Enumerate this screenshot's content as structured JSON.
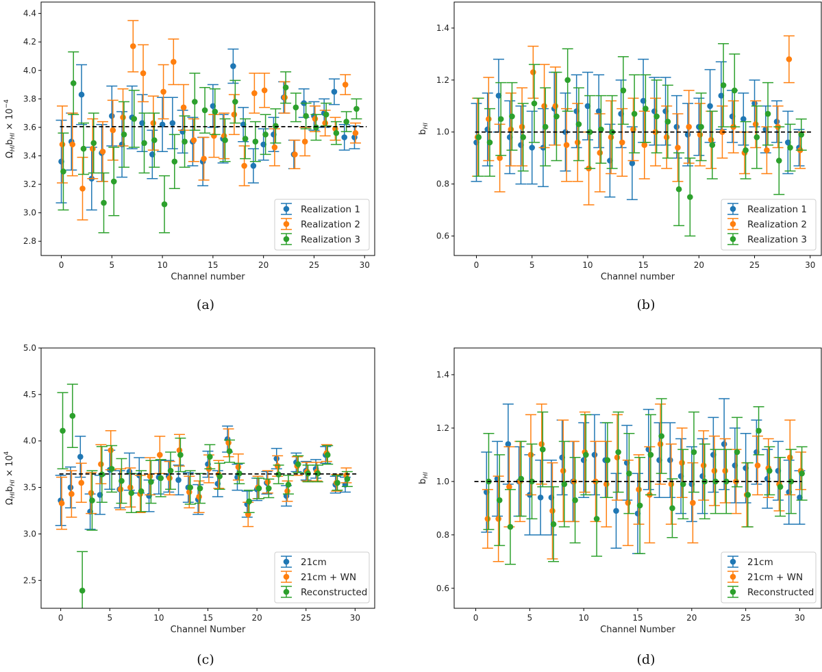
{
  "colors": {
    "series": [
      "#1f77b4",
      "#ff7f0e",
      "#2ca02c"
    ],
    "reference": "#000000"
  },
  "chart_data": [
    {
      "panel": "(a)",
      "type": "scatter",
      "error_bars": true,
      "xlabel": "Channel number",
      "ylabel": "Ω_HI b_HI × 10^-4",
      "ylabel_parts": [
        "Ω",
        "HI",
        "b",
        "HI",
        " × 10",
        "−4"
      ],
      "xlim": [
        -2,
        31
      ],
      "ylim": [
        2.7,
        4.48
      ],
      "xticks": [
        0,
        5,
        10,
        15,
        20,
        25,
        30
      ],
      "yticks": [
        2.8,
        3.0,
        3.2,
        3.4,
        3.6,
        3.8,
        4.0,
        4.2,
        4.4
      ],
      "tick_decimals": 1,
      "reference_line": 3.605,
      "legend_loc": "lower right",
      "series": [
        {
          "name": "Realization 1",
          "offset": 0,
          "errors": [
            0.29,
            0.2,
            0.21,
            0.22,
            0.2,
            0.21,
            0.23,
            0.22,
            0.2,
            0.17,
            0.19,
            0.18,
            0.15,
            0.17,
            0.17,
            0.15,
            0.17,
            0.12,
            0.12,
            0.12,
            0.11,
            0.12,
            0.11,
            0.1,
            0.1,
            0.1,
            0.1,
            0.09,
            0.09,
            0.08
          ],
          "values": [
            3.36,
            3.5,
            3.83,
            3.24,
            3.42,
            3.68,
            3.48,
            3.67,
            3.63,
            3.41,
            3.62,
            3.63,
            3.57,
            3.5,
            3.36,
            3.75,
            3.52,
            4.03,
            3.62,
            3.33,
            3.48,
            3.55,
            3.81,
            3.41,
            3.77,
            3.68,
            3.7,
            3.85,
            3.53,
            3.53
          ]
        },
        {
          "name": "Realization 2",
          "offset": 0.1,
          "errors": [
            0.27,
            0.22,
            0.22,
            0.21,
            0.21,
            0.21,
            0.2,
            0.18,
            0.2,
            0.19,
            0.19,
            0.16,
            0.16,
            0.15,
            0.15,
            0.15,
            0.16,
            0.14,
            0.14,
            0.14,
            0.12,
            0.13,
            0.11,
            0.1,
            0.1,
            0.09,
            0.09,
            0.08,
            0.07,
            0.07
          ],
          "values": [
            3.48,
            3.48,
            3.17,
            3.45,
            3.43,
            3.58,
            3.67,
            4.17,
            3.98,
            3.63,
            3.85,
            4.06,
            3.74,
            3.51,
            3.38,
            3.54,
            3.54,
            3.69,
            3.33,
            3.84,
            3.86,
            3.46,
            3.81,
            3.41,
            3.5,
            3.66,
            3.63,
            3.59,
            3.9,
            3.56
          ]
        },
        {
          "name": "Realization 3",
          "offset": 0.2,
          "errors": [
            0.27,
            0.22,
            0.18,
            0.21,
            0.21,
            0.24,
            0.23,
            0.2,
            0.21,
            0.19,
            0.2,
            0.19,
            0.18,
            0.2,
            0.16,
            0.16,
            0.15,
            0.15,
            0.14,
            0.14,
            0.14,
            0.12,
            0.11,
            0.1,
            0.09,
            0.09,
            0.08,
            0.08,
            0.07,
            0.07
          ],
          "values": [
            3.29,
            3.91,
            3.45,
            3.49,
            3.07,
            3.22,
            3.55,
            3.66,
            3.49,
            3.51,
            3.06,
            3.36,
            3.5,
            3.78,
            3.72,
            3.71,
            3.51,
            3.78,
            3.52,
            3.5,
            3.55,
            3.61,
            3.88,
            3.74,
            3.68,
            3.6,
            3.69,
            3.56,
            3.64,
            3.73
          ]
        }
      ]
    },
    {
      "panel": "(b)",
      "type": "scatter",
      "error_bars": true,
      "xlabel": "Channel number",
      "ylabel": "b_HI",
      "ylabel_parts": [
        "b",
        "HI",
        "",
        "",
        "",
        ""
      ],
      "xlim": [
        -2,
        31
      ],
      "ylim": [
        0.525,
        1.5
      ],
      "xticks": [
        0,
        5,
        10,
        15,
        20,
        25,
        30
      ],
      "yticks": [
        0.6,
        0.8,
        1.0,
        1.2,
        1.4
      ],
      "tick_decimals": 1,
      "reference_line": 1.0,
      "legend_loc": "lower right",
      "series": [
        {
          "name": "Realization 1",
          "offset": 0,
          "errors": [
            0.15,
            0.14,
            0.14,
            0.14,
            0.15,
            0.14,
            0.15,
            0.14,
            0.15,
            0.14,
            0.13,
            0.14,
            0.14,
            0.13,
            0.14,
            0.16,
            0.13,
            0.13,
            0.12,
            0.12,
            0.11,
            0.14,
            0.13,
            0.1,
            0.1,
            0.09,
            0.09,
            0.08,
            0.12,
            0.07
          ],
          "values": [
            0.96,
            1.01,
            1.14,
            0.98,
            0.95,
            0.94,
            0.94,
            1.09,
            1.0,
            1.08,
            1.1,
            1.08,
            0.89,
            1.07,
            0.88,
            1.12,
            1.08,
            1.08,
            1.02,
            0.99,
            1.02,
            1.1,
            1.14,
            1.06,
            1.05,
            1.11,
            1.01,
            1.04,
            0.96,
            0.94
          ]
        },
        {
          "name": "Realization 2",
          "offset": 0.1,
          "errors": [
            0.15,
            0.16,
            0.13,
            0.14,
            0.15,
            0.1,
            0.16,
            0.15,
            0.14,
            0.15,
            0.14,
            0.15,
            0.14,
            0.13,
            0.12,
            0.13,
            0.13,
            0.12,
            0.13,
            0.14,
            0.12,
            0.11,
            0.1,
            0.1,
            0.08,
            0.09,
            0.09,
            0.08,
            0.09,
            0.07
          ],
          "values": [
            0.98,
            1.05,
            0.9,
            1.01,
            1.02,
            1.23,
            1.1,
            1.1,
            0.95,
            0.96,
            0.86,
            0.92,
            0.98,
            0.96,
            1.01,
            0.95,
            1.0,
            0.98,
            0.94,
            1.02,
            0.99,
            0.97,
            1.0,
            1.02,
            0.92,
            1.03,
            0.93,
            1.02,
            1.28,
            0.93
          ]
        },
        {
          "name": "Realization 3",
          "offset": 0.2,
          "errors": [
            0.15,
            0.13,
            0.14,
            0.13,
            0.13,
            0.15,
            0.15,
            0.17,
            0.12,
            0.14,
            0.14,
            0.13,
            0.14,
            0.13,
            0.15,
            0.13,
            0.14,
            0.14,
            0.14,
            0.15,
            0.13,
            0.13,
            0.16,
            0.14,
            0.11,
            0.12,
            0.12,
            0.13,
            0.09,
            0.06
          ],
          "values": [
            0.98,
            0.96,
            1.05,
            1.06,
            0.98,
            1.11,
            1.02,
            1.06,
            1.2,
            1.03,
            1.0,
            1.01,
            1.0,
            1.16,
            1.07,
            1.09,
            1.06,
            1.04,
            0.78,
            0.75,
            1.02,
            0.95,
            1.18,
            1.16,
            0.93,
            0.98,
            1.07,
            0.89,
            0.94,
            0.99
          ]
        }
      ]
    },
    {
      "panel": "(c)",
      "type": "scatter",
      "error_bars": true,
      "xlabel": "Channel Number",
      "ylabel": "Ω_HI b_HI × 10^4",
      "ylabel_parts": [
        "Ω",
        "HI",
        "b",
        "HI",
        " × 10",
        "4"
      ],
      "xlim": [
        -2,
        32
      ],
      "ylim": [
        2.2,
        5.0
      ],
      "xticks": [
        0,
        5,
        10,
        15,
        20,
        25,
        30
      ],
      "yticks": [
        2.5,
        3.0,
        3.5,
        4.0,
        4.5,
        5.0
      ],
      "tick_decimals": 1,
      "reference_line": 3.645,
      "legend_loc": "lower right",
      "series": [
        {
          "name": "21cm",
          "offset": 0,
          "errors": [
            0.27,
            0.22,
            0.22,
            0.19,
            0.21,
            0.21,
            0.2,
            0.2,
            0.19,
            0.17,
            0.18,
            0.17,
            0.16,
            0.16,
            0.16,
            0.14,
            0.14,
            0.14,
            0.14,
            0.14,
            0.12,
            0.12,
            0.11,
            0.11,
            0.1,
            0.1,
            0.1,
            0.09,
            0.09,
            0.08
          ],
          "values": [
            3.36,
            3.5,
            3.83,
            3.24,
            3.42,
            3.69,
            3.48,
            3.67,
            3.63,
            3.41,
            3.61,
            3.62,
            3.58,
            3.5,
            3.37,
            3.75,
            3.54,
            4.02,
            3.61,
            3.32,
            3.48,
            3.55,
            3.81,
            3.41,
            3.77,
            3.68,
            3.7,
            3.85,
            3.53,
            3.53
          ]
        },
        {
          "name": "21cm + WN",
          "offset": 0.1,
          "errors": [
            0.28,
            0.25,
            0.21,
            0.22,
            0.21,
            0.21,
            0.22,
            0.21,
            0.2,
            0.2,
            0.2,
            0.18,
            0.17,
            0.17,
            0.17,
            0.15,
            0.15,
            0.15,
            0.14,
            0.13,
            0.12,
            0.12,
            0.11,
            0.11,
            0.1,
            0.1,
            0.1,
            0.09,
            0.09,
            0.08
          ],
          "values": [
            3.33,
            3.43,
            3.55,
            3.44,
            3.75,
            3.9,
            3.48,
            3.5,
            3.43,
            3.62,
            3.85,
            3.6,
            3.9,
            3.45,
            3.4,
            3.7,
            3.64,
            3.98,
            3.72,
            3.21,
            3.5,
            3.56,
            3.73,
            3.46,
            3.73,
            3.67,
            3.67,
            3.87,
            3.55,
            3.63
          ]
        },
        {
          "name": "Reconstructed",
          "offset": 0.2,
          "errors": [
            0.41,
            0.34,
            0.42,
            0.32,
            0.3,
            0.25,
            0.24,
            0.21,
            0.22,
            0.23,
            0.2,
            0.2,
            0.18,
            0.18,
            0.16,
            0.13,
            0.14,
            0.12,
            0.11,
            0.12,
            0.11,
            0.1,
            0.1,
            0.1,
            0.09,
            0.09,
            0.09,
            0.1,
            0.08,
            0.08
          ],
          "values": [
            4.11,
            4.27,
            2.39,
            3.36,
            3.64,
            3.7,
            3.57,
            3.44,
            3.46,
            3.56,
            3.6,
            3.68,
            3.85,
            3.5,
            3.49,
            3.83,
            3.62,
            3.89,
            3.65,
            3.35,
            3.49,
            3.49,
            3.64,
            3.53,
            3.75,
            3.65,
            3.65,
            3.85,
            3.55,
            3.59
          ]
        }
      ]
    },
    {
      "panel": "(d)",
      "type": "scatter",
      "error_bars": true,
      "xlabel": "Channel Number",
      "ylabel": "b_HI",
      "ylabel_parts": [
        "b",
        "HI",
        "",
        "",
        "",
        ""
      ],
      "xlim": [
        -2,
        32
      ],
      "ylim": [
        0.525,
        1.5
      ],
      "xticks": [
        0,
        5,
        10,
        15,
        20,
        25,
        30
      ],
      "yticks": [
        0.6,
        0.8,
        1.0,
        1.2,
        1.4
      ],
      "tick_decimals": 1,
      "reference_line": 1.0,
      "legend_loc": "lower right",
      "x": [
        1,
        2,
        3,
        4,
        5,
        6,
        7,
        8,
        9,
        10,
        11,
        12,
        13,
        14,
        15,
        16,
        17,
        18,
        19,
        20,
        21,
        22,
        23,
        24,
        25,
        26,
        27,
        28,
        29,
        30
      ],
      "series": [
        {
          "name": "21cm",
          "offset": 0,
          "errors": [
            0.15,
            0.14,
            0.15,
            0.13,
            0.15,
            0.14,
            0.14,
            0.14,
            0.15,
            0.14,
            0.15,
            0.14,
            0.14,
            0.14,
            0.15,
            0.15,
            0.14,
            0.14,
            0.14,
            0.14,
            0.14,
            0.14,
            0.17,
            0.14,
            0.13,
            0.12,
            0.11,
            0.11,
            0.12,
            0.1
          ],
          "values": [
            0.96,
            1.01,
            1.14,
            1.0,
            0.95,
            0.94,
            0.94,
            1.09,
            1.0,
            1.08,
            1.1,
            1.08,
            0.89,
            1.07,
            0.88,
            1.12,
            1.08,
            1.08,
            1.02,
            0.99,
            1.02,
            1.1,
            1.14,
            1.06,
            1.05,
            1.11,
            1.01,
            1.04,
            0.96,
            0.94
          ]
        },
        {
          "name": "21cm + WN",
          "offset": 0.1,
          "errors": [
            0.11,
            0.16,
            0.15,
            0.15,
            0.15,
            0.15,
            0.18,
            0.19,
            0.15,
            0.15,
            0.15,
            0.16,
            0.16,
            0.16,
            0.13,
            0.18,
            0.15,
            0.15,
            0.13,
            0.15,
            0.13,
            0.13,
            0.12,
            0.12,
            0.12,
            0.11,
            0.11,
            0.1,
            0.14,
            0.07
          ],
          "values": [
            0.86,
            0.86,
            0.98,
            1.0,
            1.1,
            1.14,
            0.89,
            1.04,
            1.0,
            1.11,
            1.0,
            0.99,
            1.09,
            0.92,
            0.97,
            0.95,
            1.14,
            0.99,
            1.07,
            0.92,
            1.06,
            1.04,
            1.04,
            1.0,
            0.95,
            1.06,
            1.05,
            0.99,
            1.09,
            1.04
          ]
        },
        {
          "name": "Reconstructed",
          "offset": 0.2,
          "errors": [
            0.18,
            0.17,
            0.14,
            0.14,
            0.14,
            0.14,
            0.14,
            0.16,
            0.16,
            0.15,
            0.14,
            0.14,
            0.15,
            0.15,
            0.18,
            0.15,
            0.14,
            0.11,
            0.13,
            0.15,
            0.14,
            0.12,
            0.12,
            0.13,
            0.12,
            0.09,
            0.09,
            0.11,
            0.12,
            0.1
          ],
          "values": [
            1.0,
            0.93,
            0.83,
            1.01,
            1.0,
            1.12,
            0.84,
            0.99,
            0.93,
            1.1,
            0.86,
            1.08,
            1.11,
            1.03,
            0.91,
            1.1,
            1.17,
            0.9,
            0.99,
            1.11,
            1.0,
            1.0,
            1.0,
            1.11,
            0.95,
            1.19,
            1.04,
            0.98,
            1.0,
            1.03
          ]
        }
      ]
    }
  ]
}
